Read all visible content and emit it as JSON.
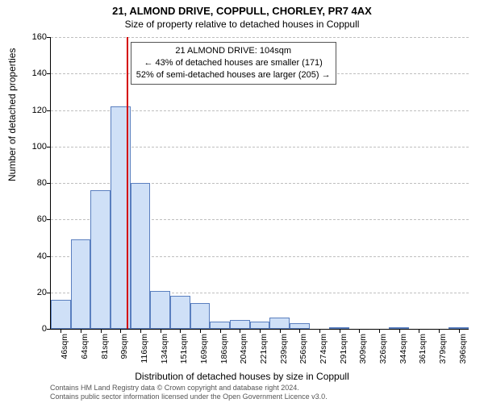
{
  "title_main": "21, ALMOND DRIVE, COPPULL, CHORLEY, PR7 4AX",
  "title_sub": "Size of property relative to detached houses in Coppull",
  "y_axis_label": "Number of detached properties",
  "x_axis_label": "Distribution of detached houses by size in Coppull",
  "footer_line1": "Contains HM Land Registry data © Crown copyright and database right 2024.",
  "footer_line2": "Contains public sector information licensed under the Open Government Licence v3.0.",
  "infobox": {
    "line1": "21 ALMOND DRIVE: 104sqm",
    "line2": "← 43% of detached houses are smaller (171)",
    "line3": "52% of semi-detached houses are larger (205) →"
  },
  "chart": {
    "type": "histogram",
    "ylim": [
      0,
      160
    ],
    "ytick_step": 20,
    "background_color": "#ffffff",
    "grid_color": "#bfbfbf",
    "bar_fill": "#cfe0f7",
    "bar_border": "#5a7fbf",
    "marker_color": "#d40000",
    "marker_value": 104,
    "x_start": 37.5,
    "x_bin_width": 17.5,
    "bins": [
      {
        "label": "46sqm",
        "value": 16
      },
      {
        "label": "64sqm",
        "value": 49
      },
      {
        "label": "81sqm",
        "value": 76
      },
      {
        "label": "99sqm",
        "value": 122
      },
      {
        "label": "116sqm",
        "value": 80
      },
      {
        "label": "134sqm",
        "value": 21
      },
      {
        "label": "151sqm",
        "value": 18
      },
      {
        "label": "169sqm",
        "value": 14
      },
      {
        "label": "186sqm",
        "value": 4
      },
      {
        "label": "204sqm",
        "value": 5
      },
      {
        "label": "221sqm",
        "value": 4
      },
      {
        "label": "239sqm",
        "value": 6
      },
      {
        "label": "256sqm",
        "value": 3
      },
      {
        "label": "274sqm",
        "value": 0
      },
      {
        "label": "291sqm",
        "value": 1
      },
      {
        "label": "309sqm",
        "value": 0
      },
      {
        "label": "326sqm",
        "value": 0
      },
      {
        "label": "344sqm",
        "value": 1
      },
      {
        "label": "361sqm",
        "value": 0
      },
      {
        "label": "379sqm",
        "value": 0
      },
      {
        "label": "396sqm",
        "value": 1
      }
    ],
    "title_fontsize": 13,
    "label_fontsize": 12,
    "tick_fontsize": 11
  }
}
